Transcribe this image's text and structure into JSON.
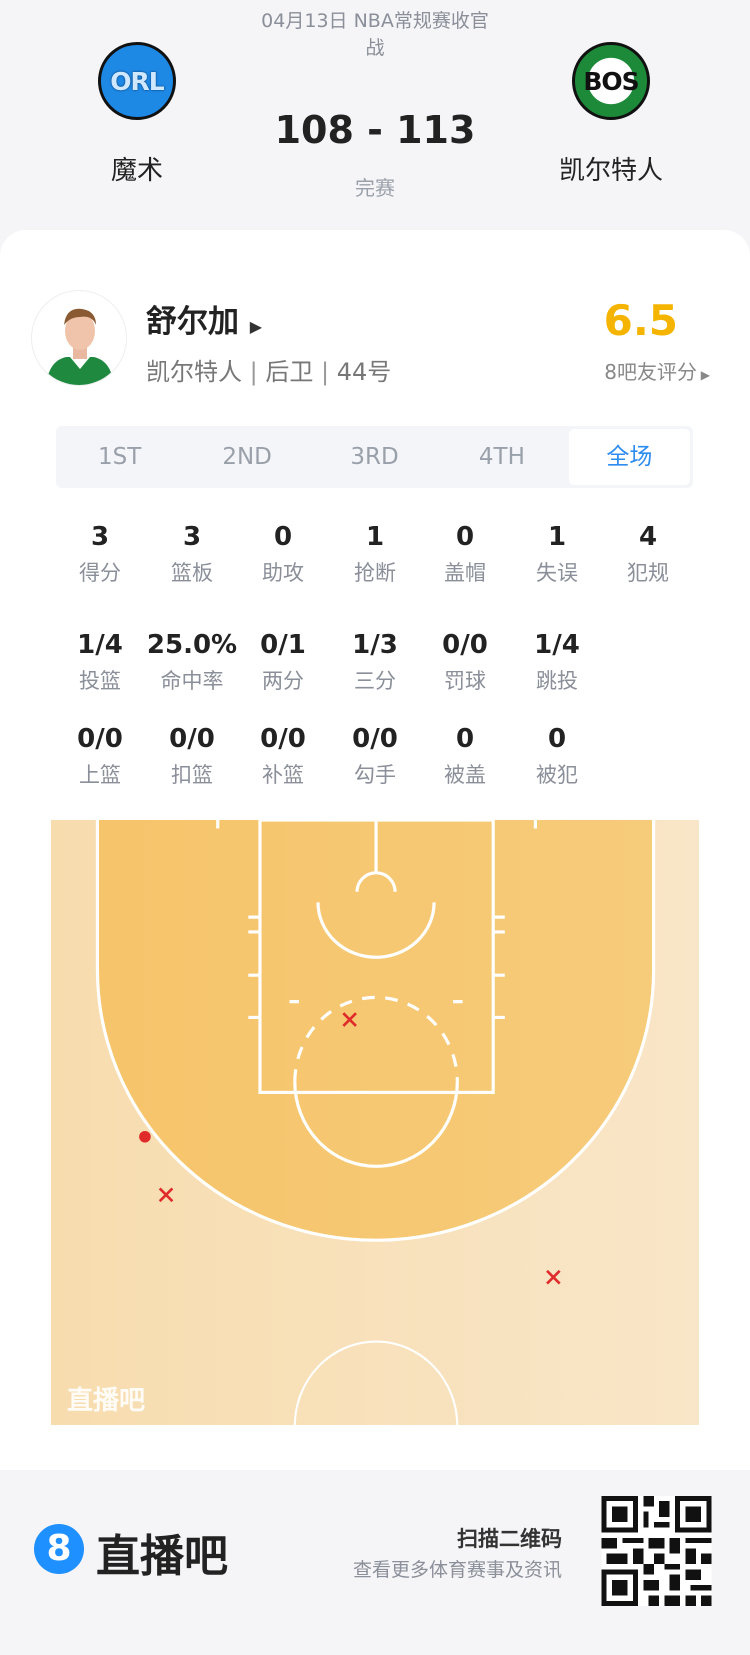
{
  "match": {
    "title": "04月13日 NBA常规赛收官战",
    "title_line1": "04月13日 NBA常规赛收官",
    "title_line2": "战",
    "score": "108 - 113",
    "status": "完赛",
    "home": {
      "abbr": "ORL",
      "name": "魔术",
      "color": "#1e88e5"
    },
    "away": {
      "abbr": "BOS",
      "name": "凯尔特人",
      "color": "#1d8a3a"
    }
  },
  "player": {
    "name": "舒尔加",
    "team": "凯尔特人",
    "position": "后卫",
    "number": "44号",
    "rating": "6.5",
    "rating_label": "8吧友评分",
    "rating_color": "#f5b400"
  },
  "tabs": [
    {
      "label": "1ST"
    },
    {
      "label": "2ND"
    },
    {
      "label": "3RD"
    },
    {
      "label": "4TH"
    },
    {
      "label": "全场",
      "active": true
    }
  ],
  "stats": [
    [
      {
        "v": "3",
        "l": "得分"
      },
      {
        "v": "3",
        "l": "篮板"
      },
      {
        "v": "0",
        "l": "助攻"
      },
      {
        "v": "1",
        "l": "抢断"
      },
      {
        "v": "0",
        "l": "盖帽"
      },
      {
        "v": "1",
        "l": "失误"
      },
      {
        "v": "4",
        "l": "犯规"
      }
    ],
    [
      {
        "v": "1/4",
        "l": "投篮"
      },
      {
        "v": "25.0%",
        "l": "命中率"
      },
      {
        "v": "0/1",
        "l": "两分"
      },
      {
        "v": "1/3",
        "l": "三分"
      },
      {
        "v": "0/0",
        "l": "罚球"
      },
      {
        "v": "1/4",
        "l": "跳投"
      }
    ],
    [
      {
        "v": "0/0",
        "l": "上篮"
      },
      {
        "v": "0/0",
        "l": "扣篮"
      },
      {
        "v": "0/0",
        "l": "补篮"
      },
      {
        "v": "0/0",
        "l": "勾手"
      },
      {
        "v": "0",
        "l": "被盖"
      },
      {
        "v": "0",
        "l": "被犯"
      }
    ]
  ],
  "shot_chart": {
    "watermark": "直播吧",
    "shot_color": "#e02b2b",
    "shots": [
      {
        "result": "miss",
        "zone": "paint top"
      },
      {
        "result": "made",
        "zone": "left wing three"
      },
      {
        "result": "miss",
        "zone": "left wing three"
      },
      {
        "result": "miss",
        "zone": "right wing deep three"
      }
    ]
  },
  "footer": {
    "brand": "直播吧",
    "brand_mark": "8",
    "brand_color": "#1e90ff",
    "qr_title": "扫描二维码",
    "qr_sub": "查看更多体育赛事及资讯"
  }
}
